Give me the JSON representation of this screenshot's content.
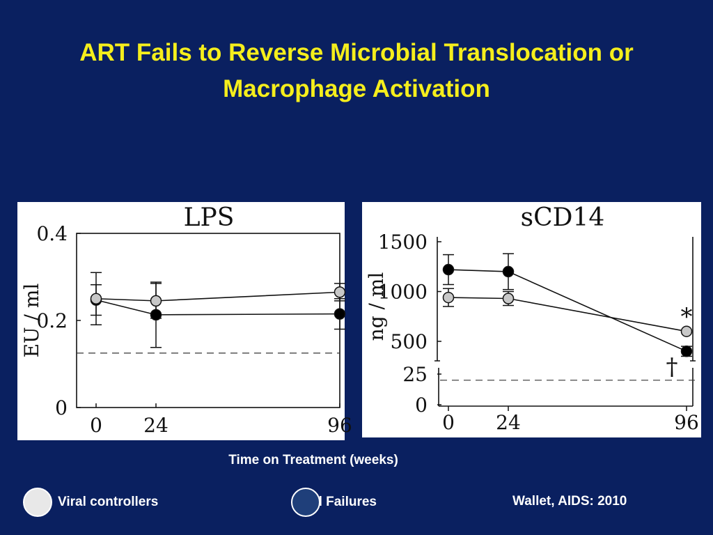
{
  "slide": {
    "title": "ART Fails to Reverse Microbial Translocation or Macrophage  Activation",
    "x_caption": "Time on Treatment (weeks)",
    "citation": "Wallet, AIDS: 2010"
  },
  "legend": {
    "items": [
      {
        "label": "Viral controllers",
        "color": "#e8e8e8"
      },
      {
        "label": "Viral Failures",
        "color": "#1f3f7a"
      }
    ]
  },
  "colors": {
    "background": "#0a2060",
    "title": "#f5ee1c",
    "controllers_marker": "#c8c8c8",
    "failures_marker": "#000000"
  },
  "chart_data": [
    {
      "type": "line",
      "title": "LPS",
      "ylabel": "EU / ml",
      "xlabel": "",
      "x": [
        0,
        24,
        96
      ],
      "x_ticks": [
        "0",
        "24",
        "96"
      ],
      "y_ticks": [
        "0",
        "0.2",
        "0.4"
      ],
      "ylim": [
        0,
        0.4
      ],
      "reference_line": 0.125,
      "series": [
        {
          "key": "controllers",
          "values": [
            0.25,
            0.245,
            0.265
          ],
          "err": [
            0.06,
            0.04,
            0.02
          ]
        },
        {
          "key": "failures",
          "values": [
            0.247,
            0.213,
            0.215
          ],
          "err": [
            0.035,
            0.075,
            0.035
          ]
        }
      ]
    },
    {
      "type": "line",
      "title": "sCD14",
      "ylabel": "ng / ml",
      "xlabel": "",
      "x": [
        0,
        24,
        96
      ],
      "x_ticks": [
        "0",
        "24",
        "96"
      ],
      "y_ticks": [
        "0",
        "25",
        "500",
        "1000",
        "1500"
      ],
      "y_axis_break": true,
      "reference_line": 20,
      "annotations": [
        "*",
        "†"
      ],
      "series": [
        {
          "key": "controllers",
          "values": [
            940,
            930,
            600
          ],
          "err": [
            90,
            70,
            0
          ]
        },
        {
          "key": "failures",
          "values": [
            1220,
            1200,
            400
          ],
          "err": [
            150,
            180,
            50
          ]
        }
      ]
    }
  ]
}
